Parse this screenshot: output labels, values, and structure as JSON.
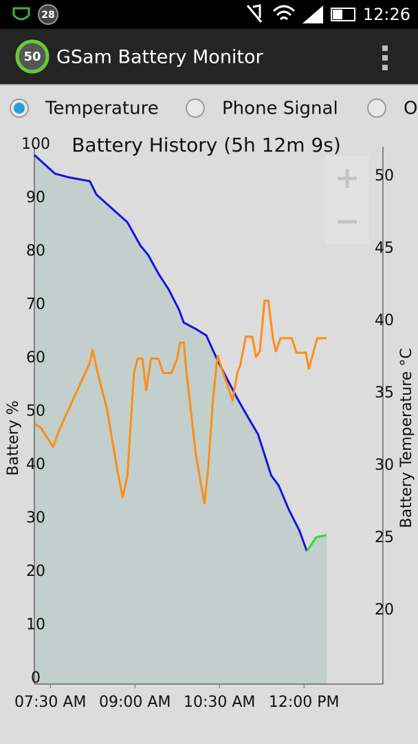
{
  "status_bar": {
    "badge": "28",
    "time": "12:26"
  },
  "app_bar": {
    "badge": "50",
    "title": "GSam Battery Monitor"
  },
  "options": [
    {
      "label": "Temperature",
      "selected": true
    },
    {
      "label": "Phone Signal",
      "selected": false
    },
    {
      "label": "O",
      "selected": false
    }
  ],
  "chart_data": {
    "type": "line",
    "title": "Battery History (5h 12m 9s)",
    "y_label": "Battery %",
    "y2_label": "Battery Temperature °C",
    "xlim": [
      433,
      804
    ],
    "xticks": [
      {
        "value": 450,
        "label": "07:30 AM"
      },
      {
        "value": 540,
        "label": "09:00 AM"
      },
      {
        "value": 630,
        "label": "10:30 AM"
      },
      {
        "value": 720,
        "label": "12:00 PM"
      }
    ],
    "ylim": [
      0,
      100
    ],
    "yticks": [
      0,
      10,
      20,
      30,
      40,
      50,
      60,
      70,
      80,
      90,
      100
    ],
    "y2lim": [
      14.9,
      51.8
    ],
    "y2ticks": [
      20,
      25,
      30,
      35,
      40,
      45,
      50
    ],
    "area_color": "#c2cfcc",
    "series": [
      {
        "color": "#1414e0",
        "x": [
          433,
          455,
          470,
          492,
          499,
          532,
          546,
          554,
          565,
          576,
          587,
          592,
          605,
          616,
          627,
          638,
          649,
          660,
          671,
          678,
          685,
          693,
          704,
          715,
          723
        ],
        "values": [
          99.1,
          95.6,
          94.9,
          94.2,
          91.7,
          86.5,
          82.1,
          80.4,
          76.9,
          73.9,
          70.1,
          67.7,
          66.5,
          65.3,
          61.0,
          57.2,
          53.5,
          50.1,
          46.8,
          43.0,
          39.1,
          37.2,
          32.6,
          28.8,
          24.9
        ]
      },
      {
        "color": "#33dd22",
        "x": [
          723,
          733,
          744
        ],
        "values": [
          24.9,
          27.5,
          27.9
        ]
      },
      {
        "color": "#ff8c14",
        "axis": "y2",
        "x": [
          433,
          440,
          453,
          459,
          492,
          495,
          503,
          510,
          521,
          527,
          532,
          539,
          543,
          548,
          552,
          557,
          565,
          570,
          579,
          585,
          588,
          592,
          595,
          605,
          614,
          618,
          623,
          628,
          634,
          644,
          649,
          652,
          658,
          665,
          669,
          673,
          678,
          682,
          687,
          690,
          695,
          707,
          712,
          722,
          725,
          729,
          734,
          744
        ],
        "values": [
          32.9,
          32.6,
          31.3,
          32.4,
          37.1,
          38.0,
          35.7,
          34.0,
          29.8,
          27.8,
          29.3,
          36.4,
          37.4,
          37.4,
          35.2,
          37.4,
          37.4,
          36.4,
          36.4,
          37.4,
          38.5,
          38.5,
          36.4,
          30.7,
          27.4,
          29.8,
          34.5,
          37.6,
          36.4,
          34.5,
          36.4,
          36.9,
          38.9,
          38.9,
          37.5,
          37.9,
          41.4,
          41.4,
          38.8,
          37.9,
          38.8,
          38.8,
          37.8,
          37.8,
          36.7,
          37.6,
          38.8,
          38.8
        ]
      }
    ]
  }
}
